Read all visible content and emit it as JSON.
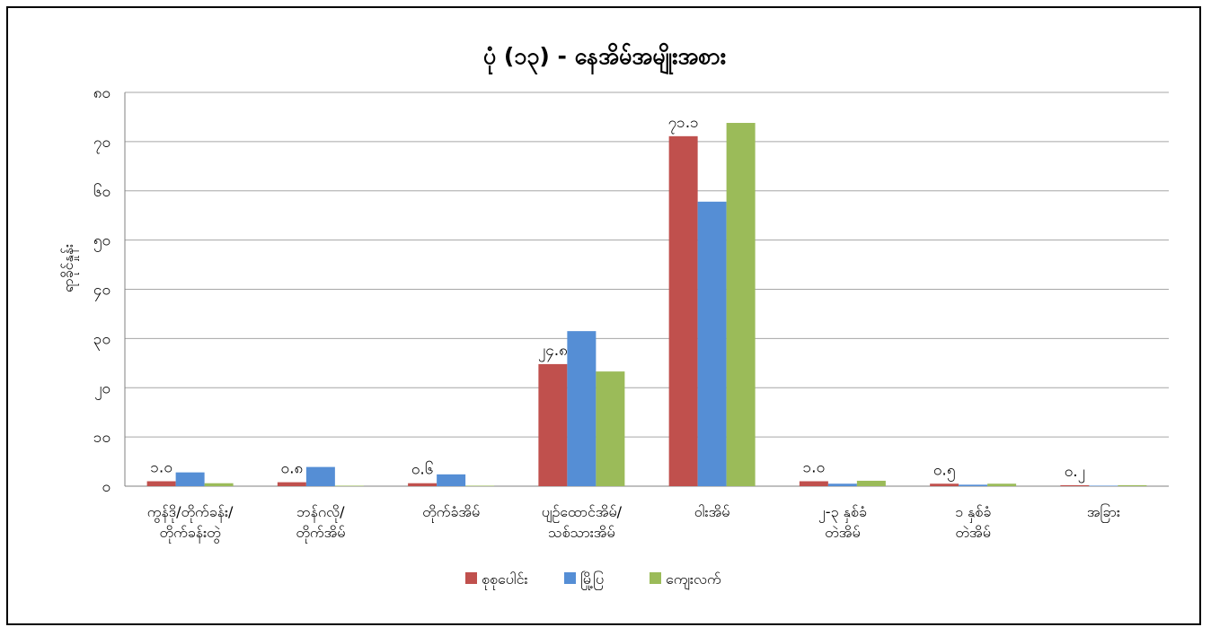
{
  "chart_data": {
    "type": "bar",
    "title": "ပုံ (၁၃) - နေအိမ်အမျိုးအစား",
    "xlabel": "",
    "ylabel": "ရာခိုင်နှုန်း",
    "ylim": [
      0,
      80
    ],
    "yticks": [
      0,
      10,
      20,
      30,
      40,
      50,
      60,
      70,
      80
    ],
    "ytick_labels": [
      "၀",
      "၁၀",
      "၂၀",
      "၃၀",
      "၄၀",
      "၅၀",
      "၆၀",
      "၇၀",
      "၈၀"
    ],
    "grid": true,
    "legend_position": "bottom",
    "categories": [
      [
        "ကွန်ဒို/တိုက်ခန်း/",
        "တိုက်ခန်းတွဲ"
      ],
      [
        "ဘန်ဂလို/",
        "တိုက်အိမ်"
      ],
      [
        "တိုက်ခံအိမ်"
      ],
      [
        "ပျဉ်ထောင်အိမ်/",
        "သစ်သားအိမ်"
      ],
      [
        "ဝါးအိမ်"
      ],
      [
        "၂-၃ နှစ်ခံ",
        "တဲအိမ်"
      ],
      [
        "၁ နှစ်ခံ",
        "တဲအိမ်"
      ],
      [
        "အခြား"
      ]
    ],
    "series": [
      {
        "name": "စုစုပေါင်း",
        "color": "#c0504d",
        "values": [
          1.0,
          0.8,
          0.6,
          24.8,
          71.1,
          1.0,
          0.5,
          0.2
        ]
      },
      {
        "name": "မြို့ပြ",
        "color": "#558ed5",
        "values": [
          2.8,
          3.9,
          2.4,
          31.5,
          57.8,
          0.5,
          0.3,
          0.1
        ]
      },
      {
        "name": "ကျေးလက်",
        "color": "#9bbb59",
        "values": [
          0.6,
          0.1,
          0.1,
          23.3,
          73.8,
          1.1,
          0.5,
          0.2
        ]
      }
    ],
    "data_labels": [
      "၁.၀",
      "၀.၈",
      "၀.၆",
      "၂၄.၈",
      "၇၁.၁",
      "၁.၀",
      "၀.၅",
      "၀.၂"
    ]
  }
}
